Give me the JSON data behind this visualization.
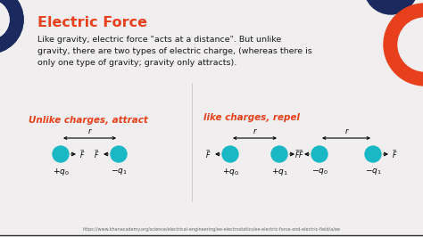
{
  "bg_color": "#f0eeee",
  "title": "Electric Force",
  "title_color": "#e8401c",
  "body_text": "Like gravity, electric force \"acts at a distance\". But unlike\ngravity, there are two types of electric charge, (whereas there is\nonly one type of gravity; gravity only attracts).",
  "body_color": "#1a1a1a",
  "section1_title": "Unlike charges, attract",
  "section2_title": "like charges, repel",
  "section_title_color": "#e8401c",
  "teal_color": "#1ab8c4",
  "dark_navy": "#1a2a5e",
  "orange_red": "#e8401c",
  "url_text": "https://www.khanacademy.org/science/electrical-engineering/ee-electrostatics/ee-electric-force-and-electric-field/a/ee",
  "url_color": "#666666",
  "figsize": [
    4.74,
    2.66
  ],
  "dpi": 100
}
